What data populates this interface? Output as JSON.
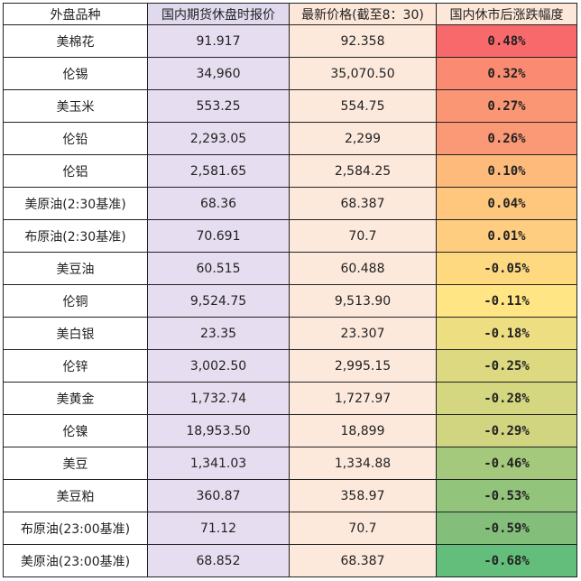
{
  "table": {
    "headers": [
      "外盘品种",
      "国内期货休盘时报价",
      "最新价格(截至8：30)",
      "国内休市后涨跌幅度"
    ],
    "rows": [
      {
        "name": "美棉花",
        "domestic": "91.917",
        "latest": "92.358",
        "change": "0.48%",
        "color": "#f8696b"
      },
      {
        "name": "伦锡",
        "domestic": "34,960",
        "latest": "35,070.50",
        "change": "0.32%",
        "color": "#fa8b72"
      },
      {
        "name": "美玉米",
        "domestic": "553.25",
        "latest": "554.75",
        "change": "0.27%",
        "color": "#fb9674"
      },
      {
        "name": "伦铅",
        "domestic": "2,293.05",
        "latest": "2,299",
        "change": "0.26%",
        "color": "#fb9875"
      },
      {
        "name": "伦铝",
        "domestic": "2,581.65",
        "latest": "2,584.25",
        "change": "0.10%",
        "color": "#fdba7b"
      },
      {
        "name": "美原油(2:30基准)",
        "domestic": "68.36",
        "latest": "68.387",
        "change": "0.04%",
        "color": "#fec77d"
      },
      {
        "name": "布原油(2:30基准)",
        "domestic": "70.691",
        "latest": "70.7",
        "change": "0.01%",
        "color": "#fecd7f"
      },
      {
        "name": "美豆油",
        "domestic": "60.515",
        "latest": "60.488",
        "change": "-0.05%",
        "color": "#fed980"
      },
      {
        "name": "伦铜",
        "domestic": "9,524.75",
        "latest": "9,513.90",
        "change": "-0.11%",
        "color": "#ffe583"
      },
      {
        "name": "美白银",
        "domestic": "23.35",
        "latest": "23.307",
        "change": "-0.18%",
        "color": "#edde82"
      },
      {
        "name": "伦锌",
        "domestic": "3,002.50",
        "latest": "2,995.15",
        "change": "-0.25%",
        "color": "#dcd981"
      },
      {
        "name": "美黄金",
        "domestic": "1,732.74",
        "latest": "1,727.97",
        "change": "-0.28%",
        "color": "#d4d680"
      },
      {
        "name": "伦镍",
        "domestic": "18,953.50",
        "latest": "18,899",
        "change": "-0.29%",
        "color": "#d1d580"
      },
      {
        "name": "美豆",
        "domestic": "1,341.03",
        "latest": "1,334.88",
        "change": "-0.46%",
        "color": "#a5c97c"
      },
      {
        "name": "美豆粕",
        "domestic": "360.87",
        "latest": "358.97",
        "change": "-0.53%",
        "color": "#93c47b"
      },
      {
        "name": "布原油(23:00基准)",
        "domestic": "71.12",
        "latest": "70.7",
        "change": "-0.59%",
        "color": "#83bf7a"
      },
      {
        "name": "美原油(23:00基准)",
        "domestic": "68.852",
        "latest": "68.387",
        "change": "-0.68%",
        "color": "#63be7b"
      }
    ]
  }
}
